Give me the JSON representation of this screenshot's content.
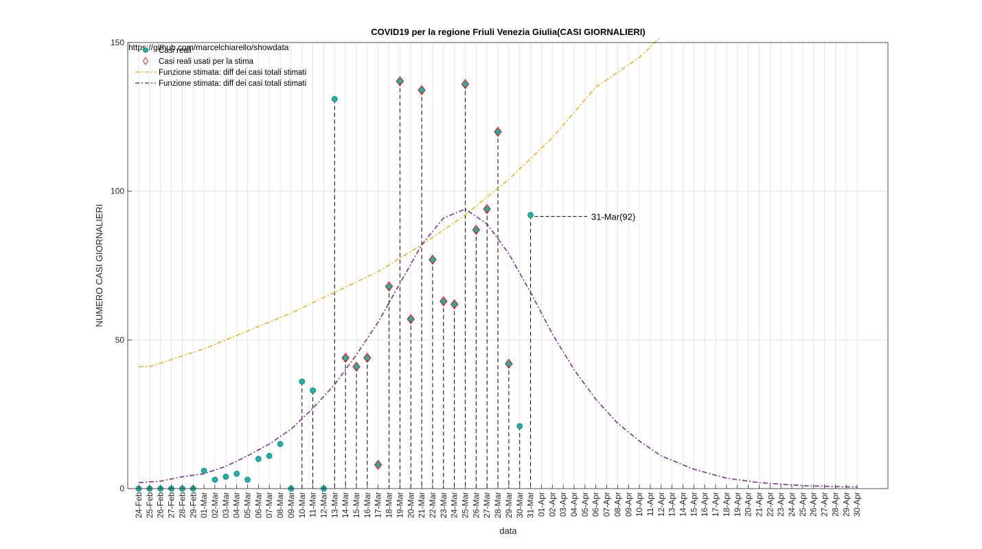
{
  "chart_data": {
    "type": "scatter",
    "title": "COVID19 per la regione Friuli Venezia Giulia(CASI GIORNALIERI)",
    "xlabel": "data",
    "ylabel": "NUMERO CASI GIORNALIERI",
    "ylim": [
      0,
      150
    ],
    "yticks": [
      0,
      50,
      100,
      150
    ],
    "grid": true,
    "source_text": "https://github.com/marcelchiarello/showdata",
    "legend_position": "top-left",
    "x_ticks": [
      "24-Feb",
      "25-Feb",
      "26-Feb",
      "27-Feb",
      "28-Feb",
      "29-Feb",
      "01-Mar",
      "02-Mar",
      "03-Mar",
      "04-Mar",
      "05-Mar",
      "06-Mar",
      "07-Mar",
      "08-Mar",
      "09-Mar",
      "10-Mar",
      "11-Mar",
      "12-Mar",
      "13-Mar",
      "14-Mar",
      "15-Mar",
      "16-Mar",
      "17-Mar",
      "18-Mar",
      "19-Mar",
      "20-Mar",
      "21-Mar",
      "22-Mar",
      "23-Mar",
      "24-Mar",
      "25-Mar",
      "26-Mar",
      "27-Mar",
      "28-Mar",
      "29-Mar",
      "30-Mar",
      "31-Mar",
      "01-Apr",
      "02-Apr",
      "03-Apr",
      "04-Apr",
      "05-Apr",
      "06-Apr",
      "07-Apr",
      "08-Apr",
      "09-Apr",
      "10-Apr",
      "11-Apr",
      "12-Apr",
      "13-Apr",
      "14-Apr",
      "15-Apr",
      "16-Apr",
      "17-Apr",
      "18-Apr",
      "19-Apr",
      "20-Apr",
      "21-Apr",
      "22-Apr",
      "23-Apr",
      "24-Apr",
      "25-Apr",
      "26-Apr",
      "27-Apr",
      "28-Apr",
      "29-Apr",
      "30-Apr"
    ],
    "series": [
      {
        "name": "Casi reali",
        "marker": "filled-circle",
        "color": "#1fb0a8",
        "x": [
          "24-Feb",
          "25-Feb",
          "26-Feb",
          "27-Feb",
          "28-Feb",
          "29-Feb",
          "01-Mar",
          "02-Mar",
          "03-Mar",
          "04-Mar",
          "05-Mar",
          "06-Mar",
          "07-Mar",
          "08-Mar",
          "09-Mar",
          "10-Mar",
          "11-Mar",
          "12-Mar",
          "13-Mar",
          "14-Mar",
          "15-Mar",
          "16-Mar",
          "17-Mar",
          "18-Mar",
          "19-Mar",
          "20-Mar",
          "21-Mar",
          "22-Mar",
          "23-Mar",
          "24-Mar",
          "25-Mar",
          "26-Mar",
          "27-Mar",
          "28-Mar",
          "29-Mar",
          "30-Mar",
          "31-Mar"
        ],
        "values": [
          0,
          0,
          0,
          0,
          0,
          0,
          6,
          3,
          4,
          5,
          3,
          10,
          11,
          15,
          0,
          36,
          33,
          0,
          131,
          44,
          41,
          44,
          8,
          68,
          137,
          57,
          134,
          77,
          63,
          62,
          136,
          87,
          94,
          120,
          42,
          21,
          92
        ]
      },
      {
        "name": "Casi reali usati per la stima",
        "marker": "diamond",
        "color": "#e8231a",
        "x": [
          "14-Mar",
          "15-Mar",
          "16-Mar",
          "17-Mar",
          "18-Mar",
          "19-Mar",
          "20-Mar",
          "21-Mar",
          "22-Mar",
          "23-Mar",
          "24-Mar",
          "25-Mar",
          "26-Mar",
          "27-Mar",
          "28-Mar",
          "29-Mar"
        ],
        "values": [
          44,
          41,
          44,
          8,
          68,
          137,
          57,
          134,
          77,
          63,
          62,
          136,
          87,
          94,
          120,
          42
        ]
      },
      {
        "name": "Funzione stimata: diff dei casi totali stimati",
        "style": "dash-dot",
        "color": "#edb120",
        "x": [
          "24-Feb",
          "25-Feb",
          "01-Mar",
          "05-Mar",
          "09-Mar",
          "13-Mar",
          "17-Mar",
          "21-Mar",
          "25-Mar",
          "29-Mar",
          "02-Apr",
          "06-Apr",
          "10-Apr",
          "12-Apr"
        ],
        "values": [
          41,
          41,
          47,
          53,
          59,
          66,
          73,
          82,
          92,
          104,
          118,
          135,
          145,
          152
        ]
      },
      {
        "name": "Funzione stimata: diff dei casi totali stimati",
        "style": "dash-dot",
        "color": "#7e2f8e",
        "x": [
          "24-Feb",
          "26-Feb",
          "28-Feb",
          "01-Mar",
          "03-Mar",
          "05-Mar",
          "07-Mar",
          "09-Mar",
          "11-Mar",
          "13-Mar",
          "15-Mar",
          "17-Mar",
          "19-Mar",
          "21-Mar",
          "23-Mar",
          "25-Mar",
          "27-Mar",
          "29-Mar",
          "31-Mar",
          "02-Apr",
          "04-Apr",
          "06-Apr",
          "08-Apr",
          "10-Apr",
          "12-Apr",
          "15-Apr",
          "18-Apr",
          "21-Apr",
          "25-Apr",
          "30-Apr"
        ],
        "values": [
          2,
          2.5,
          4,
          5,
          7.5,
          11,
          15,
          20,
          27,
          35,
          45,
          56,
          69,
          82,
          91,
          94,
          89,
          79,
          66,
          52,
          40,
          30,
          22,
          16,
          11,
          6.5,
          3.5,
          2,
          1,
          0.5
        ]
      }
    ],
    "annotations": [
      {
        "x": "31-Mar",
        "y": 92,
        "text": "31-Mar(92)"
      }
    ]
  }
}
